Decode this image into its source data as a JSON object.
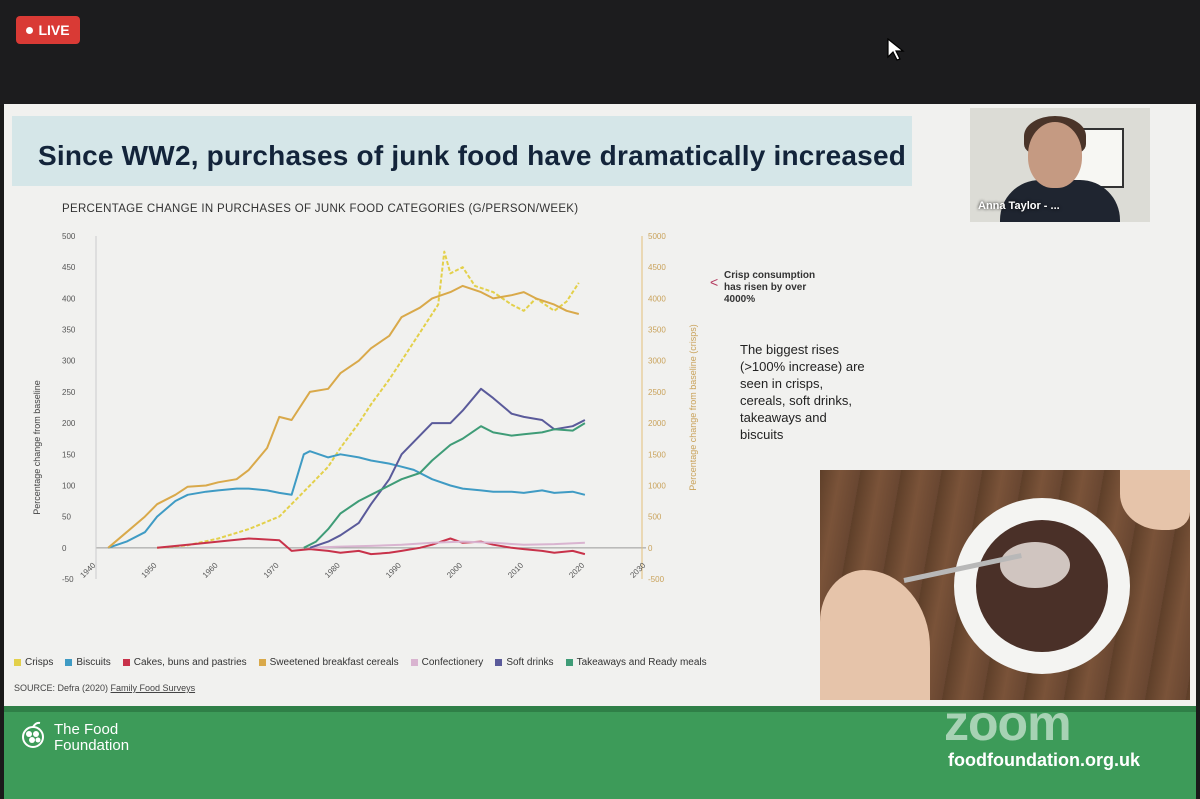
{
  "zoom": {
    "live_label": "LIVE",
    "watermark": "zoom",
    "participant_name": "Anna Taylor - ..."
  },
  "slide": {
    "title": "Since WW2, purchases of junk food have dramatically increased",
    "callout": "Crisp consumption has risen by over 4000%",
    "body": "The biggest rises (>100% increase) are seen in crisps, cereals, soft drinks, takeaways and biscuits",
    "source_prefix": "SOURCE: Defra (2020)",
    "source_link": "Family Food Surveys",
    "footer_org_line1": "The Food",
    "footer_org_line2": "Foundation",
    "footer_url": "foodfoundation.org.uk"
  },
  "chart_data": {
    "type": "line",
    "title": "PERCENTAGE CHANGE IN PURCHASES OF JUNK FOOD CATEGORIES (G/PERSON/WEEK)",
    "ylabel": "Percentage change from baseline",
    "ylabel_right": "Percentage change from baseline (crisps)",
    "xlim": [
      1940,
      2030
    ],
    "ylim": [
      -50,
      500
    ],
    "ylim_right": [
      -500,
      5000
    ],
    "x_ticks": [
      1940,
      1950,
      1960,
      1970,
      1980,
      1990,
      2000,
      2010,
      2020,
      2030
    ],
    "y_ticks": [
      -50,
      0,
      50,
      100,
      150,
      200,
      250,
      300,
      350,
      400,
      450,
      500
    ],
    "y_ticks_right": [
      -500,
      0,
      500,
      1000,
      1500,
      2000,
      2500,
      3000,
      3500,
      4000,
      4500,
      5000
    ],
    "legend_position": "bottom",
    "series": [
      {
        "name": "Crisps",
        "color": "#e3d04a",
        "axis": "right",
        "style": "dashed",
        "x": [
          1950,
          1955,
          1960,
          1965,
          1970,
          1973,
          1975,
          1978,
          1980,
          1983,
          1985,
          1988,
          1990,
          1992,
          1994,
          1996,
          1997,
          1998,
          2000,
          2002,
          2005,
          2008,
          2010,
          2012,
          2015,
          2017,
          2019
        ],
        "y": [
          0,
          40,
          150,
          300,
          500,
          800,
          1000,
          1300,
          1600,
          2000,
          2300,
          2700,
          3000,
          3300,
          3600,
          3900,
          4750,
          4400,
          4500,
          4200,
          4100,
          3900,
          3800,
          4000,
          3800,
          3950,
          4250
        ]
      },
      {
        "name": "Biscuits",
        "color": "#3f9bc4",
        "axis": "left",
        "x": [
          1942,
          1945,
          1948,
          1950,
          1953,
          1955,
          1958,
          1960,
          1963,
          1965,
          1968,
          1970,
          1972,
          1974,
          1975,
          1978,
          1980,
          1983,
          1985,
          1988,
          1990,
          1992,
          1995,
          1998,
          2000,
          2003,
          2005,
          2008,
          2010,
          2013,
          2015,
          2018,
          2020
        ],
        "y": [
          0,
          10,
          25,
          50,
          75,
          85,
          90,
          92,
          95,
          95,
          92,
          88,
          85,
          150,
          155,
          145,
          150,
          145,
          140,
          135,
          130,
          125,
          110,
          100,
          95,
          92,
          90,
          90,
          88,
          92,
          88,
          90,
          85
        ]
      },
      {
        "name": "Cakes, buns and pastries",
        "color": "#c8324a",
        "axis": "left",
        "x": [
          1950,
          1955,
          1960,
          1965,
          1970,
          1972,
          1975,
          1978,
          1980,
          1983,
          1985,
          1988,
          1990,
          1993,
          1995,
          1998,
          2000,
          2003,
          2005,
          2008,
          2010,
          2013,
          2015,
          2018,
          2020
        ],
        "y": [
          0,
          5,
          10,
          15,
          12,
          -5,
          -2,
          -5,
          -8,
          -5,
          -10,
          -8,
          -5,
          0,
          5,
          15,
          8,
          10,
          5,
          0,
          -2,
          -5,
          -8,
          -5,
          -10
        ]
      },
      {
        "name": "Sweetened breakfast cereals",
        "color": "#d9a94a",
        "axis": "left",
        "x": [
          1942,
          1945,
          1948,
          1950,
          1953,
          1955,
          1958,
          1960,
          1963,
          1965,
          1968,
          1970,
          1972,
          1975,
          1978,
          1980,
          1983,
          1985,
          1988,
          1990,
          1993,
          1995,
          1998,
          2000,
          2003,
          2005,
          2008,
          2010,
          2012,
          2015,
          2017,
          2019
        ],
        "y": [
          0,
          25,
          50,
          70,
          85,
          98,
          100,
          105,
          110,
          125,
          160,
          210,
          205,
          250,
          255,
          280,
          300,
          320,
          340,
          370,
          385,
          400,
          410,
          420,
          410,
          400,
          405,
          410,
          400,
          390,
          380,
          375
        ]
      },
      {
        "name": "Confectionery",
        "color": "#d9b4d0",
        "axis": "left",
        "x": [
          1975,
          1980,
          1985,
          1990,
          1995,
          2000,
          2005,
          2010,
          2015,
          2020
        ],
        "y": [
          0,
          2,
          3,
          5,
          8,
          10,
          8,
          5,
          6,
          8
        ]
      },
      {
        "name": "Soft drinks",
        "color": "#5a5a9a",
        "axis": "left",
        "x": [
          1975,
          1978,
          1980,
          1983,
          1985,
          1988,
          1990,
          1993,
          1995,
          1998,
          2000,
          2003,
          2005,
          2008,
          2010,
          2013,
          2015,
          2018,
          2020
        ],
        "y": [
          0,
          10,
          20,
          40,
          70,
          110,
          150,
          180,
          200,
          200,
          220,
          255,
          240,
          215,
          210,
          205,
          190,
          195,
          205
        ]
      },
      {
        "name": "Takeaways and Ready meals",
        "color": "#3f9c77",
        "axis": "left",
        "x": [
          1974,
          1976,
          1978,
          1980,
          1983,
          1985,
          1988,
          1990,
          1993,
          1995,
          1998,
          2000,
          2003,
          2005,
          2008,
          2010,
          2013,
          2015,
          2018,
          2020
        ],
        "y": [
          0,
          10,
          30,
          55,
          75,
          85,
          100,
          110,
          120,
          140,
          165,
          175,
          195,
          185,
          180,
          182,
          185,
          190,
          188,
          200
        ]
      }
    ]
  }
}
